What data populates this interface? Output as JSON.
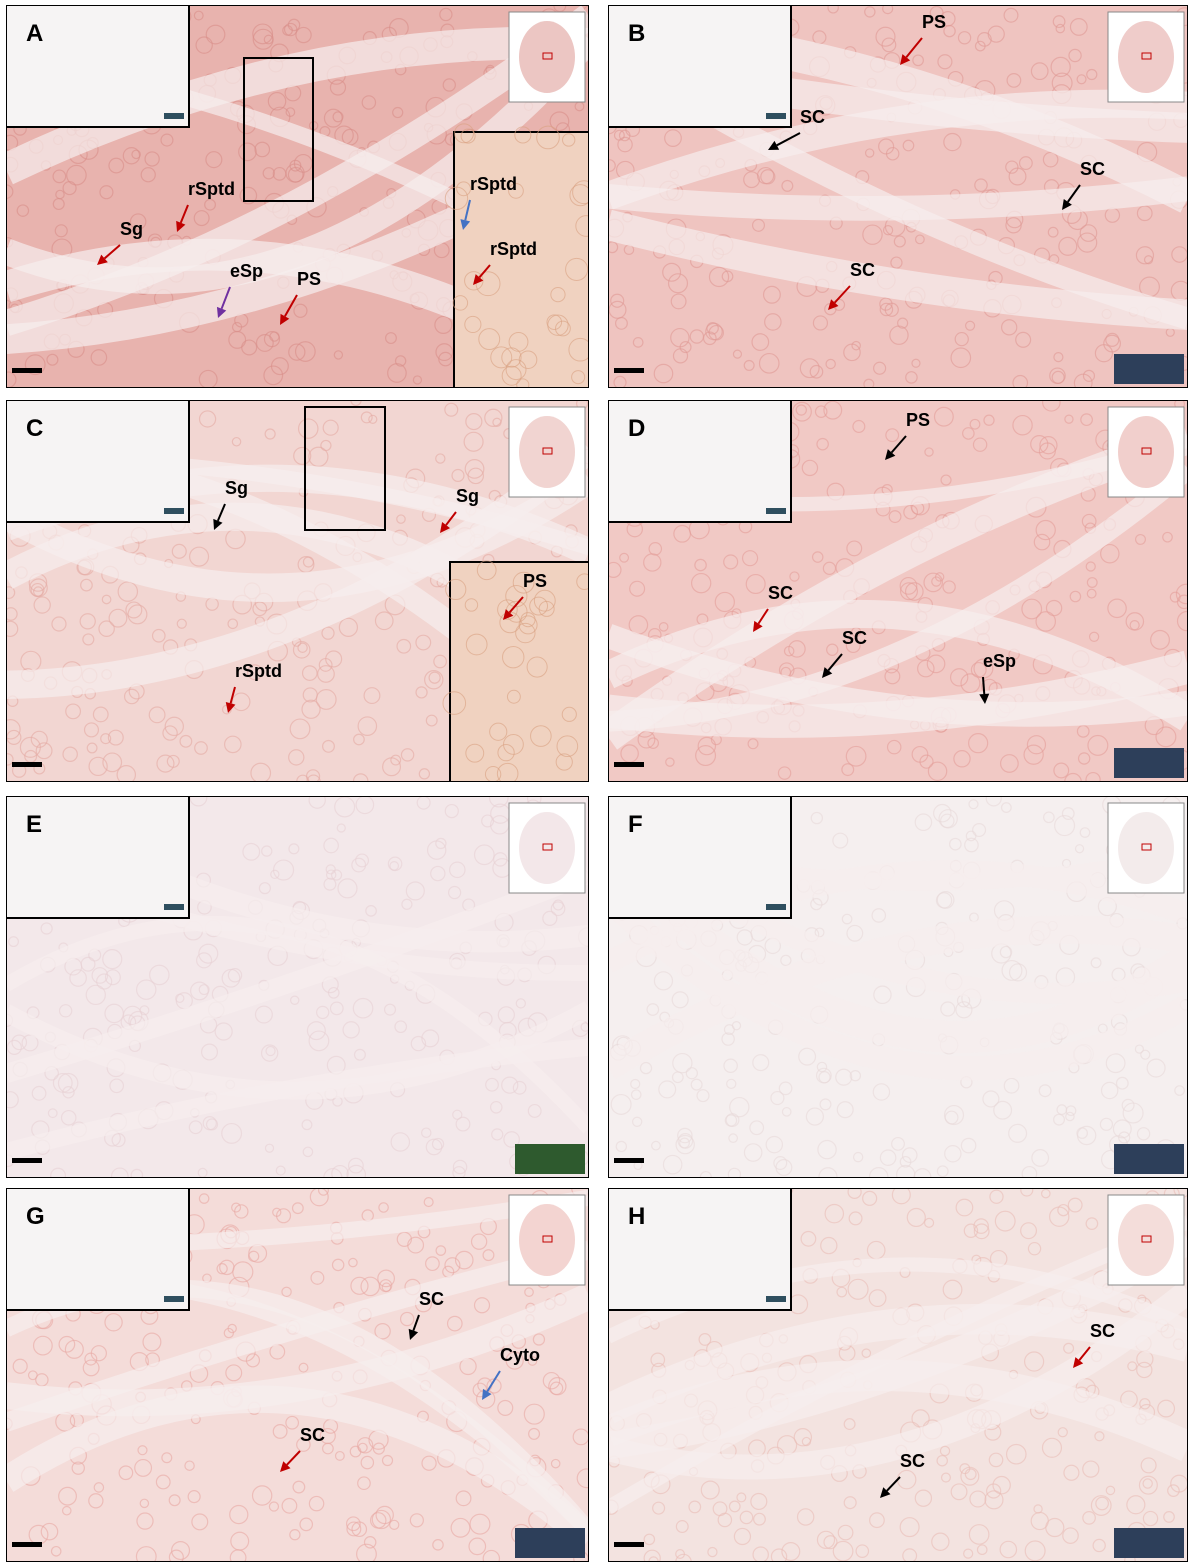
{
  "panels": [
    {
      "letter": "A",
      "annotations": [
        {
          "text": "rSptd",
          "color": "#c00000"
        },
        {
          "text": "Sg",
          "color": "#c00000"
        },
        {
          "text": "eSp",
          "color": "#7030a0"
        },
        {
          "text": "PS",
          "color": "#c00000"
        },
        {
          "text": "rSptd",
          "color": "#4472c4"
        },
        {
          "text": "rSptd",
          "color": "#c00000"
        }
      ]
    },
    {
      "letter": "B",
      "annotations": [
        {
          "text": "PS",
          "color": "#c00000"
        },
        {
          "text": "SC",
          "color": "#000000"
        },
        {
          "text": "SC",
          "color": "#000000"
        },
        {
          "text": "SC",
          "color": "#c00000"
        }
      ]
    },
    {
      "letter": "C",
      "annotations": [
        {
          "text": "Sg",
          "color": "#000000"
        },
        {
          "text": "Sg",
          "color": "#c00000"
        },
        {
          "text": "PS",
          "color": "#c00000"
        },
        {
          "text": "rSptd",
          "color": "#c00000"
        }
      ]
    },
    {
      "letter": "D",
      "annotations": [
        {
          "text": "PS",
          "color": "#000000"
        },
        {
          "text": "SC",
          "color": "#c00000"
        },
        {
          "text": "SC",
          "color": "#000000"
        },
        {
          "text": "eSp",
          "color": "#000000"
        }
      ]
    },
    {
      "letter": "E",
      "annotations": []
    },
    {
      "letter": "F",
      "annotations": []
    },
    {
      "letter": "G",
      "annotations": [
        {
          "text": "SC",
          "color": "#000000"
        },
        {
          "text": "Cyto",
          "color": "#4472c4"
        },
        {
          "text": "SC",
          "color": "#c00000"
        }
      ]
    },
    {
      "letter": "H",
      "annotations": [
        {
          "text": "SC",
          "color": "#c00000"
        },
        {
          "text": "SC",
          "color": "#000000"
        }
      ]
    }
  ]
}
